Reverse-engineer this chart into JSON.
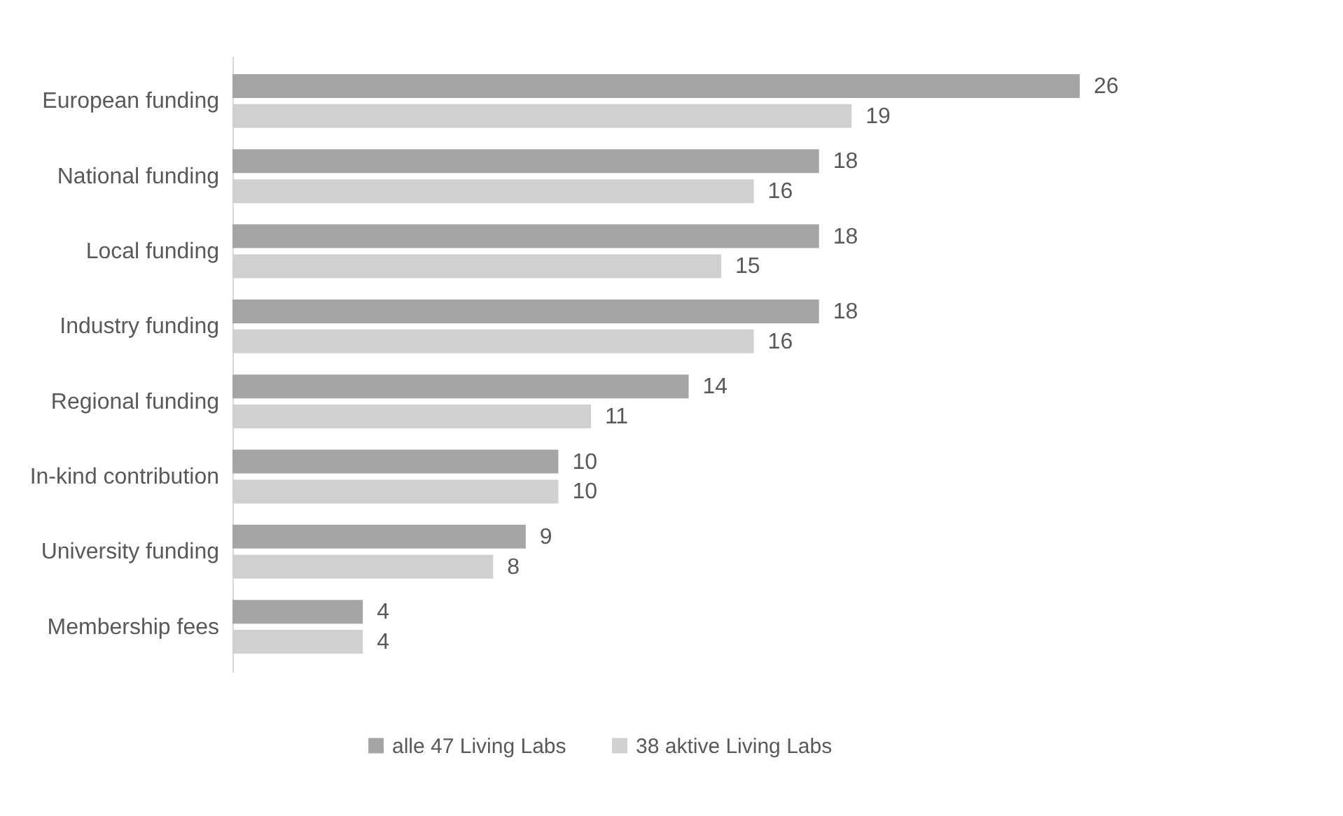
{
  "chart_data": {
    "type": "bar",
    "orientation": "horizontal",
    "categories": [
      "European funding",
      "National funding",
      "Local funding",
      "Industry funding",
      "Regional funding",
      "In-kind contribution",
      "University funding",
      "Membership fees"
    ],
    "series": [
      {
        "name": "alle 47 Living Labs",
        "color": "#a5a5a5",
        "values": [
          26,
          18,
          18,
          18,
          14,
          10,
          9,
          4
        ]
      },
      {
        "name": "38 aktive Living Labs",
        "color": "#d0d0d0",
        "values": [
          19,
          16,
          15,
          16,
          11,
          10,
          8,
          4
        ]
      }
    ],
    "data_labels": true,
    "legend": "bottom"
  }
}
